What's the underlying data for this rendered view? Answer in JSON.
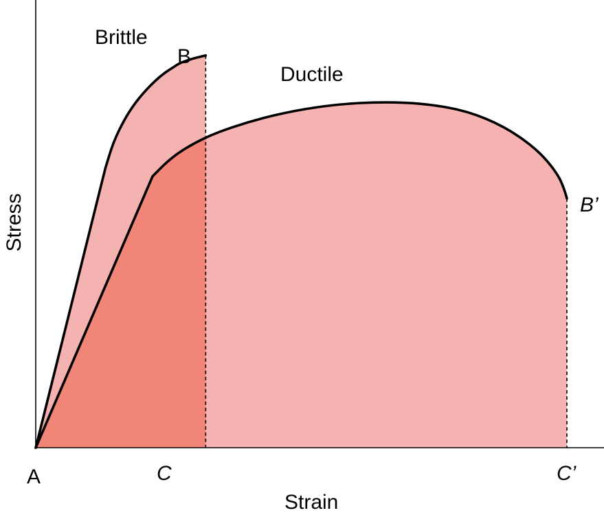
{
  "chart_data": {
    "type": "area",
    "title": "",
    "xlabel": "Strain",
    "ylabel": "Stress",
    "xlim": [
      0,
      100
    ],
    "ylim": [
      0,
      100
    ],
    "grid": false,
    "series": [
      {
        "name": "Brittle",
        "x": [
          0,
          13.1,
          14.6,
          16.7,
          18.8,
          21.3,
          23.9,
          26.0,
          27.1,
          29.7,
          32.0
        ],
        "y": [
          0,
          70.5,
          77.1,
          82.9,
          87.2,
          91.1,
          94.3,
          96.1,
          97.1,
          98.3,
          99.0
        ],
        "end_point": "B",
        "end_axis_label": "C"
      },
      {
        "name": "Ductile",
        "x": [
          0,
          22.0,
          25.1,
          28.5,
          33.5,
          40.9,
          48.7,
          56.9,
          65.4,
          73.6,
          81.2,
          88.2,
          94.0,
          97.4,
          99.3,
          100.0
        ],
        "y": [
          0,
          68.5,
          72.7,
          75.9,
          79.3,
          82.6,
          85.1,
          86.7,
          87.3,
          86.8,
          85.0,
          81.1,
          75.7,
          70.7,
          66.4,
          62.9
        ],
        "end_point": "B’",
        "end_axis_label": "C’"
      }
    ],
    "annotations": {
      "origin": "A",
      "brittle_curve_label": "Brittle",
      "ductile_curve_label": "Ductile",
      "brittle_end": "B",
      "ductile_end": "B’",
      "brittle_end_strain": "C",
      "ductile_end_strain": "C’"
    },
    "colors": {
      "brittle_fill": "#f4b2b0",
      "ductile_fill": "#f7b3b2",
      "overlap_fill": "#f08578",
      "curve_stroke": "#000000"
    }
  }
}
